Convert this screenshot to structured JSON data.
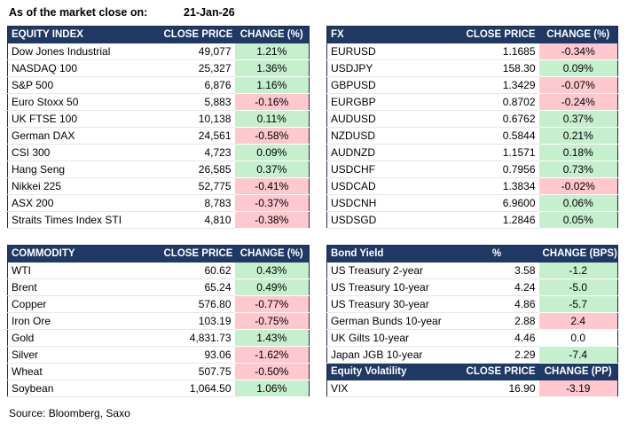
{
  "header": {
    "title": "As of the market close on:",
    "date": "21-Jan-26"
  },
  "source": "Source: Bloomberg, Saxo",
  "equity": {
    "headers": [
      "EQUITY INDEX",
      "CLOSE PRICE",
      "CHANGE (%)"
    ],
    "rows": [
      {
        "name": "Dow Jones Industrial",
        "price": "49,077",
        "change": "1.21%",
        "dir": "pos"
      },
      {
        "name": "NASDAQ 100",
        "price": "25,327",
        "change": "1.36%",
        "dir": "pos"
      },
      {
        "name": "S&P 500",
        "price": "6,876",
        "change": "1.16%",
        "dir": "pos"
      },
      {
        "name": "Euro Stoxx 50",
        "price": "5,883",
        "change": "-0.16%",
        "dir": "neg"
      },
      {
        "name": "UK FTSE 100",
        "price": "10,138",
        "change": "0.11%",
        "dir": "pos"
      },
      {
        "name": "German DAX",
        "price": "24,561",
        "change": "-0.58%",
        "dir": "neg"
      },
      {
        "name": "CSI 300",
        "price": "4,723",
        "change": "0.09%",
        "dir": "pos"
      },
      {
        "name": "Hang Seng",
        "price": "26,585",
        "change": "0.37%",
        "dir": "pos"
      },
      {
        "name": "Nikkei 225",
        "price": "52,775",
        "change": "-0.41%",
        "dir": "neg"
      },
      {
        "name": "ASX 200",
        "price": "8,783",
        "change": "-0.37%",
        "dir": "neg"
      },
      {
        "name": "Straits Times Index STI",
        "price": "4,810",
        "change": "-0.38%",
        "dir": "neg"
      }
    ]
  },
  "fx": {
    "headers": [
      "FX",
      "CLOSE PRICE",
      "CHANGE (%)"
    ],
    "rows": [
      {
        "name": "EURUSD",
        "price": "1.1685",
        "change": "-0.34%",
        "dir": "neg"
      },
      {
        "name": "USDJPY",
        "price": "158.30",
        "change": "0.09%",
        "dir": "pos"
      },
      {
        "name": "GBPUSD",
        "price": "1.3429",
        "change": "-0.07%",
        "dir": "neg"
      },
      {
        "name": "EURGBP",
        "price": "0.8702",
        "change": "-0.24%",
        "dir": "neg"
      },
      {
        "name": "AUDUSD",
        "price": "0.6762",
        "change": "0.37%",
        "dir": "pos"
      },
      {
        "name": "NZDUSD",
        "price": "0.5844",
        "change": "0.21%",
        "dir": "pos"
      },
      {
        "name": "AUDNZD",
        "price": "1.1571",
        "change": "0.18%",
        "dir": "pos"
      },
      {
        "name": "USDCHF",
        "price": "0.7956",
        "change": "0.73%",
        "dir": "pos"
      },
      {
        "name": "USDCAD",
        "price": "1.3834",
        "change": "-0.02%",
        "dir": "neg"
      },
      {
        "name": "USDCNH",
        "price": "6.9600",
        "change": "0.06%",
        "dir": "pos"
      },
      {
        "name": "USDSGD",
        "price": "1.2846",
        "change": "0.05%",
        "dir": "pos"
      }
    ]
  },
  "commodity": {
    "headers": [
      "COMMODITY",
      "CLOSE PRICE",
      "CHANGE (%)"
    ],
    "rows": [
      {
        "name": "WTI",
        "price": "60.62",
        "change": "0.43%",
        "dir": "pos"
      },
      {
        "name": "Brent",
        "price": "65.24",
        "change": "0.49%",
        "dir": "pos"
      },
      {
        "name": "Copper",
        "price": "576.80",
        "change": "-0.77%",
        "dir": "neg"
      },
      {
        "name": "Iron Ore",
        "price": "103.19",
        "change": "-0.75%",
        "dir": "neg"
      },
      {
        "name": "Gold",
        "price": "4,831.73",
        "change": "1.43%",
        "dir": "pos"
      },
      {
        "name": "Silver",
        "price": "93.06",
        "change": "-1.62%",
        "dir": "neg"
      },
      {
        "name": "Wheat",
        "price": "507.75",
        "change": "-0.50%",
        "dir": "neg"
      },
      {
        "name": "Soybean",
        "price": "1,064.50",
        "change": "1.06%",
        "dir": "pos"
      }
    ]
  },
  "bonds": {
    "headers": [
      "Bond Yield",
      "%",
      "CHANGE (BPS)"
    ],
    "rows": [
      {
        "name": "US Treasury 2-year",
        "price": "3.58",
        "change": "-1.2",
        "dir": "pos"
      },
      {
        "name": "US Treasury 10-year",
        "price": "4.24",
        "change": "-5.0",
        "dir": "pos"
      },
      {
        "name": "US Treasury 30-year",
        "price": "4.86",
        "change": "-5.7",
        "dir": "pos"
      },
      {
        "name": "German Bunds 10-year",
        "price": "2.88",
        "change": "2.4",
        "dir": "neg"
      },
      {
        "name": "UK Gilts 10-year",
        "price": "4.46",
        "change": "0.0",
        "dir": "neu"
      },
      {
        "name": "Japan JGB 10-year",
        "price": "2.29",
        "change": "-7.4",
        "dir": "pos"
      }
    ]
  },
  "volatility": {
    "headers": [
      "Equity Volatility",
      "CLOSE PRICE",
      "CHANGE (PP)"
    ],
    "rows": [
      {
        "name": "VIX",
        "price": "16.90",
        "change": "-3.19",
        "dir": "neg"
      }
    ]
  },
  "colors": {
    "header_bg": "#1f3864",
    "positive": "#c6efce",
    "negative": "#ffc7ce"
  }
}
